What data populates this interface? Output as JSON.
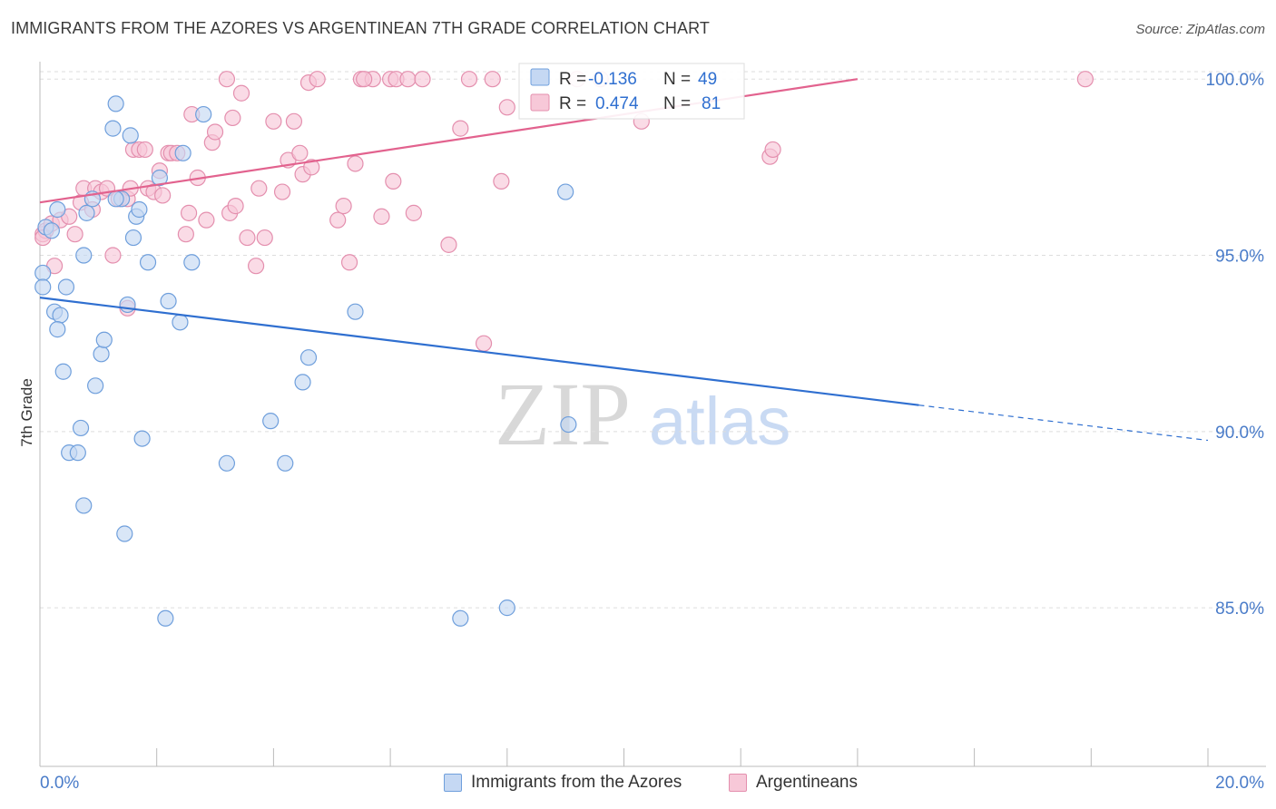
{
  "title": "IMMIGRANTS FROM THE AZORES VS ARGENTINEAN 7TH GRADE CORRELATION CHART",
  "source": "Source: ZipAtlas.com",
  "watermark": {
    "zip": "ZIP",
    "atlas": "atlas"
  },
  "colors": {
    "blue_fill": "#c5d8f3",
    "blue_stroke": "#6f9fdc",
    "blue_line": "#2f6fd0",
    "pink_fill": "#f7c8d8",
    "pink_stroke": "#e48fae",
    "pink_line": "#e2628e",
    "tick_label": "#4a7cc9",
    "grid": "#dddddd"
  },
  "stats": [
    {
      "r_label": "R =",
      "r_value": "-0.136",
      "n_label": "N =",
      "n_value": "49"
    },
    {
      "r_label": "R =",
      "r_value": "0.474",
      "n_label": "N =",
      "n_value": "81"
    }
  ],
  "legend": {
    "azores": "Immigrants from the Azores",
    "argentineans": "Argentineans"
  },
  "chart_data": {
    "type": "scatter",
    "xlabel": "",
    "ylabel": "7th Grade",
    "xlim": [
      0,
      20
    ],
    "ylim": [
      80.5,
      100.7
    ],
    "x_tick_labels": [
      {
        "value": 0,
        "label": "0.0%"
      },
      {
        "value": 20,
        "label": "20.0%"
      }
    ],
    "y_tick_labels": [
      {
        "value": 100,
        "label": "100.0%"
      },
      {
        "value": 95,
        "label": "95.0%"
      },
      {
        "value": 90,
        "label": "90.0%"
      },
      {
        "value": 85,
        "label": "85.0%"
      }
    ],
    "legend_position": "bottom",
    "grid": true,
    "series": [
      {
        "name": "Immigrants from the Azores",
        "color": "blue",
        "points": [
          [
            0.1,
            95.8
          ],
          [
            0.05,
            94.5
          ],
          [
            0.05,
            94.1
          ],
          [
            0.3,
            96.3
          ],
          [
            0.25,
            93.4
          ],
          [
            0.35,
            93.3
          ],
          [
            0.3,
            92.9
          ],
          [
            0.45,
            94.1
          ],
          [
            0.4,
            91.7
          ],
          [
            0.5,
            89.4
          ],
          [
            0.65,
            89.4
          ],
          [
            0.7,
            90.1
          ],
          [
            0.75,
            87.9
          ],
          [
            0.8,
            96.2
          ],
          [
            0.9,
            96.6
          ],
          [
            0.95,
            91.3
          ],
          [
            1.05,
            92.2
          ],
          [
            1.1,
            92.6
          ],
          [
            1.25,
            98.6
          ],
          [
            1.3,
            99.3
          ],
          [
            1.4,
            96.6
          ],
          [
            1.45,
            87.1
          ],
          [
            1.5,
            93.6
          ],
          [
            1.55,
            98.4
          ],
          [
            1.6,
            95.5
          ],
          [
            1.65,
            96.1
          ],
          [
            1.7,
            96.3
          ],
          [
            1.75,
            89.8
          ],
          [
            1.85,
            94.8
          ],
          [
            2.05,
            97.2
          ],
          [
            2.15,
            84.7
          ],
          [
            2.2,
            93.7
          ],
          [
            2.4,
            93.1
          ],
          [
            2.45,
            97.9
          ],
          [
            2.6,
            94.8
          ],
          [
            2.8,
            99.0
          ],
          [
            3.2,
            89.1
          ],
          [
            3.95,
            90.3
          ],
          [
            4.2,
            89.1
          ],
          [
            4.5,
            91.4
          ],
          [
            4.6,
            92.1
          ],
          [
            5.4,
            93.4
          ],
          [
            7.2,
            84.7
          ],
          [
            8.0,
            85.0
          ],
          [
            9.0,
            96.8
          ],
          [
            9.05,
            90.2
          ],
          [
            0.75,
            95.0
          ],
          [
            1.3,
            96.6
          ],
          [
            0.2,
            95.7
          ]
        ]
      },
      {
        "name": "Argentineans",
        "color": "pink",
        "points": [
          [
            0.05,
            95.6
          ],
          [
            0.1,
            95.7
          ],
          [
            0.2,
            95.9
          ],
          [
            0.25,
            94.7
          ],
          [
            0.35,
            96.0
          ],
          [
            0.5,
            96.1
          ],
          [
            0.6,
            95.6
          ],
          [
            0.7,
            96.5
          ],
          [
            0.75,
            96.9
          ],
          [
            0.9,
            96.3
          ],
          [
            0.95,
            96.9
          ],
          [
            1.05,
            96.8
          ],
          [
            1.15,
            96.9
          ],
          [
            1.25,
            95.0
          ],
          [
            1.35,
            96.6
          ],
          [
            1.5,
            93.5
          ],
          [
            1.5,
            96.6
          ],
          [
            1.55,
            96.9
          ],
          [
            1.6,
            98.0
          ],
          [
            1.7,
            98.0
          ],
          [
            1.8,
            98.0
          ],
          [
            1.85,
            96.9
          ],
          [
            1.95,
            96.8
          ],
          [
            2.05,
            97.4
          ],
          [
            2.1,
            96.7
          ],
          [
            2.2,
            97.9
          ],
          [
            2.25,
            97.9
          ],
          [
            2.35,
            97.9
          ],
          [
            2.5,
            95.6
          ],
          [
            2.55,
            96.2
          ],
          [
            2.6,
            99.0
          ],
          [
            2.7,
            97.2
          ],
          [
            2.85,
            96.0
          ],
          [
            2.95,
            98.2
          ],
          [
            3.0,
            98.5
          ],
          [
            3.2,
            100.0
          ],
          [
            3.25,
            96.2
          ],
          [
            3.3,
            98.9
          ],
          [
            3.35,
            96.4
          ],
          [
            3.45,
            99.6
          ],
          [
            3.55,
            95.5
          ],
          [
            3.7,
            94.7
          ],
          [
            3.75,
            96.9
          ],
          [
            3.85,
            95.5
          ],
          [
            4.0,
            98.8
          ],
          [
            4.15,
            96.8
          ],
          [
            4.25,
            97.7
          ],
          [
            4.35,
            98.8
          ],
          [
            4.45,
            97.9
          ],
          [
            4.5,
            97.3
          ],
          [
            4.6,
            99.9
          ],
          [
            4.65,
            97.5
          ],
          [
            4.75,
            100.0
          ],
          [
            5.1,
            96.0
          ],
          [
            5.2,
            96.4
          ],
          [
            5.3,
            94.8
          ],
          [
            5.4,
            97.6
          ],
          [
            5.5,
            100.0
          ],
          [
            5.7,
            100.0
          ],
          [
            5.85,
            96.1
          ],
          [
            6.0,
            100.0
          ],
          [
            6.05,
            97.1
          ],
          [
            6.1,
            100.0
          ],
          [
            6.3,
            100.0
          ],
          [
            6.4,
            96.2
          ],
          [
            6.55,
            100.0
          ],
          [
            7.0,
            95.3
          ],
          [
            7.2,
            98.6
          ],
          [
            7.35,
            100.0
          ],
          [
            7.6,
            92.5
          ],
          [
            7.75,
            100.0
          ],
          [
            7.9,
            97.1
          ],
          [
            8.0,
            99.2
          ],
          [
            9.2,
            100.0
          ],
          [
            9.6,
            100.0
          ],
          [
            10.3,
            98.8
          ],
          [
            12.5,
            97.8
          ],
          [
            12.55,
            98.0
          ],
          [
            17.9,
            100.0
          ],
          [
            0.05,
            95.5
          ],
          [
            5.55,
            100.0
          ]
        ]
      }
    ],
    "trend_lines": [
      {
        "series": "Immigrants from the Azores",
        "solid_from": [
          0,
          93.8
        ],
        "solid_to": [
          15.05,
          90.75
        ],
        "dashed_to": [
          20,
          89.75
        ]
      },
      {
        "series": "Argentineans",
        "solid_from": [
          0,
          96.5
        ],
        "solid_to": [
          14.0,
          100.0
        ]
      }
    ]
  }
}
